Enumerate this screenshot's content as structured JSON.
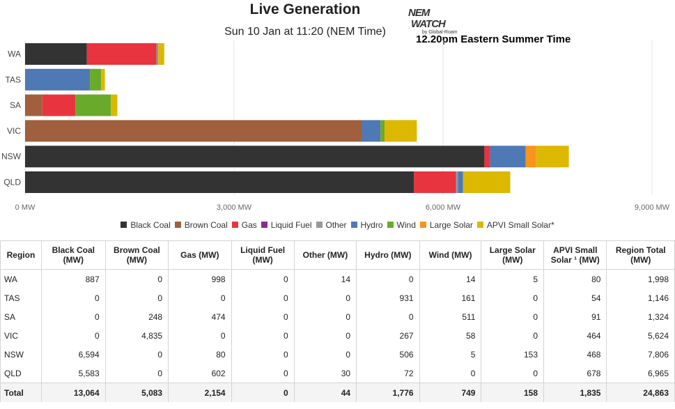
{
  "header": {
    "title": "Live Generation",
    "subtitle": "Sun 10 Jan at 11:20 (NEM Time)",
    "est_time": "12.20pm  Eastern Summer Time",
    "logo_line1": "NEM",
    "logo_line2": "WATCH",
    "logo_line3": "by Global-Roam"
  },
  "chart_data": {
    "type": "bar",
    "orientation": "horizontal",
    "stacked": true,
    "categories": [
      "WA",
      "TAS",
      "SA",
      "VIC",
      "NSW",
      "QLD"
    ],
    "xlim": [
      0,
      9000
    ],
    "x_ticks": [
      0,
      3000,
      6000,
      9000
    ],
    "x_tick_labels": [
      "0 MW",
      "3,000 MW",
      "6,000 MW",
      "9,000 MW"
    ],
    "grid": true,
    "legend_position": "bottom",
    "series": [
      {
        "name": "Black Coal",
        "color": "#333333",
        "values": [
          887,
          0,
          0,
          0,
          6594,
          5583
        ]
      },
      {
        "name": "Brown Coal",
        "color": "#a0603e",
        "values": [
          0,
          0,
          248,
          4835,
          0,
          0
        ]
      },
      {
        "name": "Gas",
        "color": "#e8343e",
        "values": [
          998,
          0,
          474,
          0,
          80,
          602
        ]
      },
      {
        "name": "Liquid Fuel",
        "color": "#8e2b8e",
        "values": [
          0,
          0,
          0,
          0,
          0,
          0
        ]
      },
      {
        "name": "Other",
        "color": "#999999",
        "values": [
          14,
          0,
          0,
          0,
          0,
          30
        ]
      },
      {
        "name": "Hydro",
        "color": "#4e79b5",
        "values": [
          0,
          931,
          0,
          267,
          506,
          72
        ]
      },
      {
        "name": "Wind",
        "color": "#6aaa2a",
        "values": [
          14,
          161,
          511,
          58,
          5,
          0
        ]
      },
      {
        "name": "Large Solar",
        "color": "#f7941d",
        "values": [
          5,
          0,
          0,
          0,
          153,
          0
        ]
      },
      {
        "name": "APVI Small Solar*",
        "color": "#dcb800",
        "values": [
          80,
          54,
          91,
          464,
          468,
          678
        ]
      }
    ]
  },
  "table": {
    "headers": [
      "Region",
      "Black Coal (MW)",
      "Brown Coal (MW)",
      "Gas (MW)",
      "Liquid Fuel (MW)",
      "Other (MW)",
      "Hydro (MW)",
      "Wind (MW)",
      "Large Solar (MW)",
      "APVI Small Solar ¹ (MW)",
      "Region Total (MW)"
    ],
    "rows": [
      [
        "WA",
        "887",
        "0",
        "998",
        "0",
        "14",
        "0",
        "14",
        "5",
        "80",
        "1,998"
      ],
      [
        "TAS",
        "0",
        "0",
        "0",
        "0",
        "0",
        "931",
        "161",
        "0",
        "54",
        "1,146"
      ],
      [
        "SA",
        "0",
        "248",
        "474",
        "0",
        "0",
        "0",
        "511",
        "0",
        "91",
        "1,324"
      ],
      [
        "VIC",
        "0",
        "4,835",
        "0",
        "0",
        "0",
        "267",
        "58",
        "0",
        "464",
        "5,624"
      ],
      [
        "NSW",
        "6,594",
        "0",
        "80",
        "0",
        "0",
        "506",
        "5",
        "153",
        "468",
        "7,806"
      ],
      [
        "QLD",
        "5,583",
        "0",
        "602",
        "0",
        "30",
        "72",
        "0",
        "0",
        "678",
        "6,965"
      ]
    ],
    "total": [
      "Total",
      "13,064",
      "5,083",
      "2,154",
      "0",
      "44",
      "1,776",
      "749",
      "158",
      "1,835",
      "24,863"
    ]
  }
}
